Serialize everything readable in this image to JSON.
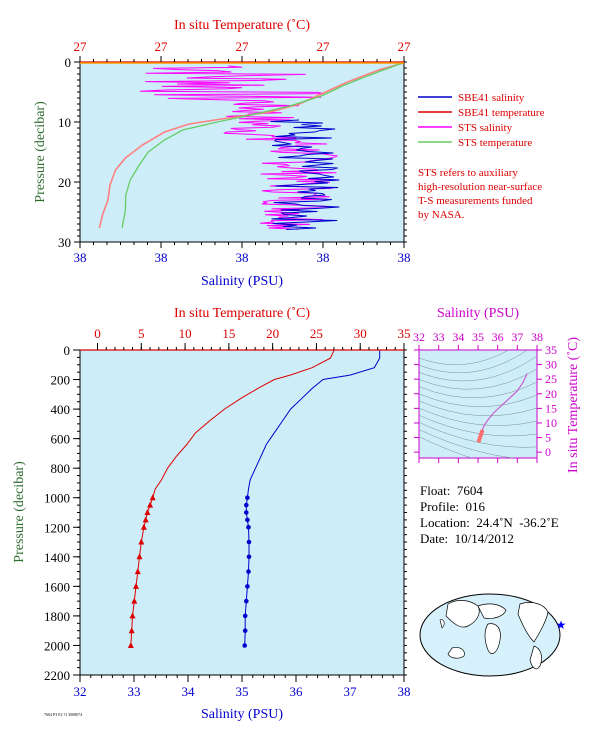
{
  "colors": {
    "plot_bg": "#cdeef8",
    "temperature": "#dd0000",
    "salinity": "#0000cc",
    "sts_salinity": "#ff00ff",
    "sts_temperature": "#66cc66",
    "pressure_label": "#2e6b2e",
    "ts_axis": "#cc00cc"
  },
  "top_panel": {
    "top_axis_title": "In situ Temperature (˚C)",
    "bottom_axis_title": "Salinity (PSU)",
    "left_axis_title": "Pressure (decibar)",
    "top_tick_labels": [
      "27",
      "27",
      "27",
      "27",
      "27"
    ],
    "bottom_tick_labels": [
      "38",
      "38",
      "38",
      "38",
      "38"
    ],
    "y_tick_labels": [
      "0",
      "10",
      "20",
      "30"
    ],
    "legend": [
      {
        "label": "SBE41 salinity",
        "color": "#0000cc"
      },
      {
        "label": "SBE41 temperature",
        "color": "#dd0000"
      },
      {
        "label": "STS salinity",
        "color": "#ff00ff"
      },
      {
        "label": "STS temperature",
        "color": "#66cc66"
      }
    ],
    "note_lines": [
      "STS refers to auxiliary",
      "high-resolution near-surface",
      "T-S measurements funded",
      "by NASA."
    ]
  },
  "main_panel": {
    "top_axis_title": "In situ Temperature (˚C)",
    "bottom_axis_title": "Salinity (PSU)",
    "left_axis_title": "Pressure (decibar)",
    "top_tick_labels": [
      "0",
      "5",
      "10",
      "15",
      "20",
      "25",
      "30",
      "35"
    ],
    "bottom_tick_labels": [
      "32",
      "33",
      "34",
      "35",
      "36",
      "37",
      "38"
    ],
    "y_tick_labels": [
      "0",
      "200",
      "400",
      "600",
      "800",
      "1000",
      "1200",
      "1400",
      "1600",
      "1800",
      "2000",
      "2200"
    ]
  },
  "ts_panel": {
    "top_axis_title": "Salinity (PSU)",
    "right_axis_title": "In situ Temperature (˚C)",
    "x_tick_labels": [
      "32",
      "33",
      "34",
      "35",
      "36",
      "37",
      "38"
    ],
    "y_tick_labels": [
      "0",
      "5",
      "10",
      "15",
      "20",
      "25",
      "30",
      "35"
    ]
  },
  "float_info": {
    "float": "Float:  7604",
    "profile": "Profile:  016",
    "location": "Location:  24.4˚N  -36.2˚E",
    "date": "Date:  10/14/2012"
  },
  "footer_code": "7604 P3 F2 ?1 3008074",
  "chart_data": [
    {
      "type": "line",
      "name": "main_profile",
      "xlim_salinity": [
        32,
        38
      ],
      "xlim_temperature": [
        -2,
        35
      ],
      "ylim_pressure": [
        2200,
        0
      ],
      "series": [
        {
          "name": "Salinity (PSU)",
          "x_salinity": [
            37.55,
            37.55,
            37.45,
            37.0,
            36.5,
            36.3,
            36.1,
            35.9,
            35.75,
            35.6,
            35.45,
            35.35,
            35.25,
            35.15,
            35.12,
            35.1,
            35.08,
            35.08,
            35.1,
            35.12,
            35.13,
            35.13,
            35.12,
            35.1,
            35.08,
            35.06,
            35.06,
            35.05
          ],
          "pressure": [
            5,
            55,
            120,
            170,
            200,
            260,
            330,
            400,
            480,
            560,
            640,
            720,
            800,
            880,
            940,
            1000,
            1050,
            1100,
            1150,
            1200,
            1300,
            1400,
            1500,
            1600,
            1700,
            1800,
            1900,
            2000
          ]
        },
        {
          "name": "Temperature (˚C)",
          "x_temperature": [
            27.0,
            26.6,
            24.5,
            22.0,
            20.2,
            18.3,
            16.3,
            14.5,
            12.8,
            11.2,
            10.2,
            9.0,
            8.0,
            7.3,
            6.6,
            6.3,
            6.0,
            5.7,
            5.5,
            5.3,
            5.0,
            4.8,
            4.6,
            4.4,
            4.2,
            4.0,
            3.9,
            3.8
          ],
          "pressure": [
            5,
            55,
            120,
            170,
            200,
            260,
            330,
            400,
            480,
            560,
            640,
            720,
            800,
            880,
            940,
            1000,
            1050,
            1100,
            1150,
            1200,
            1300,
            1400,
            1500,
            1600,
            1700,
            1800,
            1900,
            2000
          ]
        }
      ]
    },
    {
      "type": "scatter",
      "name": "ts_diagram",
      "xlim": [
        32,
        38
      ],
      "ylim": [
        -2,
        35
      ],
      "x": [
        37.5,
        37.3,
        37.0,
        36.6,
        36.2,
        35.8,
        35.5,
        35.3,
        35.2,
        35.15,
        35.1,
        35.05
      ],
      "y": [
        27.0,
        24.0,
        21.0,
        18.5,
        16.0,
        13.5,
        11.0,
        9.0,
        7.0,
        6.0,
        5.0,
        4.0
      ]
    }
  ]
}
